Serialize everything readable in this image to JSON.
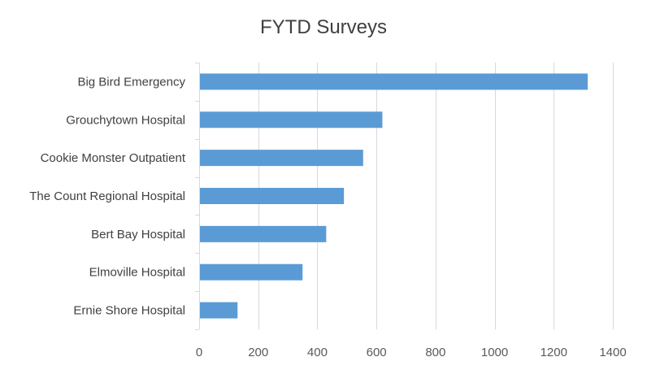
{
  "chart_data": {
    "type": "bar",
    "orientation": "horizontal",
    "title": "FYTD Surveys",
    "categories": [
      "Big Bird Emergency",
      "Grouchytown Hospital",
      "Cookie Monster Outpatient",
      "The Count Regional Hospital",
      "Bert Bay Hospital",
      "Elmoville Hospital",
      "Ernie Shore Hospital"
    ],
    "values": [
      1315,
      620,
      555,
      490,
      430,
      350,
      130
    ],
    "xlim": [
      0,
      1400
    ],
    "xticks": [
      0,
      200,
      400,
      600,
      800,
      1000,
      1200,
      1400
    ],
    "xtick_labels": [
      "0",
      "200",
      "400",
      "600",
      "800",
      "1000",
      "1200",
      "1400"
    ],
    "grid": "vertical",
    "legend": "none",
    "bar_color": "#5B9BD5",
    "grid_color": "#D9D9D9",
    "xlabel": "",
    "ylabel": ""
  }
}
